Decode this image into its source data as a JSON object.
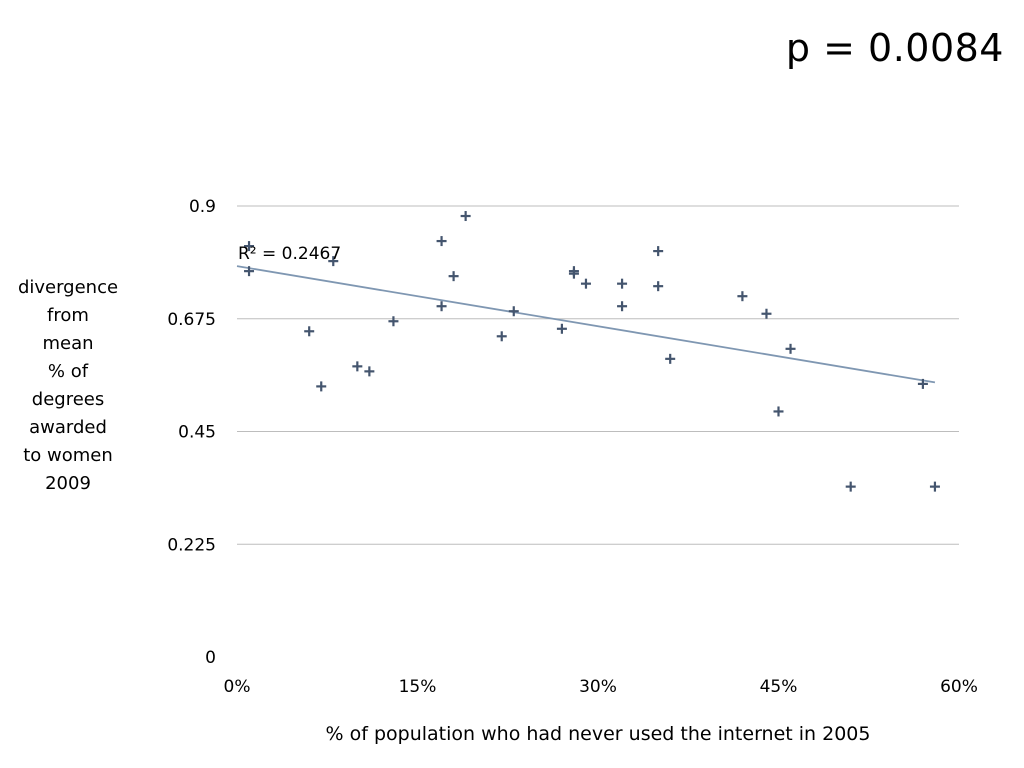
{
  "slide": {
    "p_value": "p = 0.0084"
  },
  "chart_data": {
    "type": "scatter",
    "title": "",
    "xlabel": "% of population who had never used the internet in 2005",
    "ylabel_lines": [
      "divergence",
      "from",
      "mean",
      "% of",
      "degrees",
      "awarded",
      "to women",
      "2009"
    ],
    "xlim": [
      0,
      0.6
    ],
    "ylim": [
      0,
      0.9
    ],
    "x_ticks": [
      0,
      0.15,
      0.3,
      0.45,
      0.6
    ],
    "x_tick_labels": [
      "0%",
      "15%",
      "30%",
      "45%",
      "60%"
    ],
    "y_ticks": [
      0,
      0.225,
      0.45,
      0.675,
      0.9
    ],
    "y_tick_labels": [
      "0",
      "0.225",
      "0.45",
      "0.675",
      "0.9"
    ],
    "grid": "horizontal",
    "marker": "plus",
    "points": [
      {
        "x": 0.01,
        "y": 0.82
      },
      {
        "x": 0.01,
        "y": 0.77
      },
      {
        "x": 0.06,
        "y": 0.65
      },
      {
        "x": 0.07,
        "y": 0.54
      },
      {
        "x": 0.08,
        "y": 0.79
      },
      {
        "x": 0.1,
        "y": 0.58
      },
      {
        "x": 0.11,
        "y": 0.57
      },
      {
        "x": 0.13,
        "y": 0.67
      },
      {
        "x": 0.17,
        "y": 0.83
      },
      {
        "x": 0.17,
        "y": 0.7
      },
      {
        "x": 0.18,
        "y": 0.76
      },
      {
        "x": 0.19,
        "y": 0.88
      },
      {
        "x": 0.22,
        "y": 0.64
      },
      {
        "x": 0.23,
        "y": 0.69
      },
      {
        "x": 0.27,
        "y": 0.655
      },
      {
        "x": 0.28,
        "y": 0.77
      },
      {
        "x": 0.28,
        "y": 0.765
      },
      {
        "x": 0.29,
        "y": 0.745
      },
      {
        "x": 0.32,
        "y": 0.745
      },
      {
        "x": 0.32,
        "y": 0.7
      },
      {
        "x": 0.35,
        "y": 0.81
      },
      {
        "x": 0.35,
        "y": 0.74
      },
      {
        "x": 0.36,
        "y": 0.595
      },
      {
        "x": 0.42,
        "y": 0.72
      },
      {
        "x": 0.44,
        "y": 0.685
      },
      {
        "x": 0.45,
        "y": 0.49
      },
      {
        "x": 0.46,
        "y": 0.615
      },
      {
        "x": 0.51,
        "y": 0.34
      },
      {
        "x": 0.57,
        "y": 0.545
      },
      {
        "x": 0.58,
        "y": 0.34
      }
    ],
    "trendline": {
      "type": "linear",
      "x": [
        0,
        0.58
      ],
      "y": [
        0.78,
        0.548
      ],
      "r_squared_label": "R² = 0.2467"
    }
  }
}
